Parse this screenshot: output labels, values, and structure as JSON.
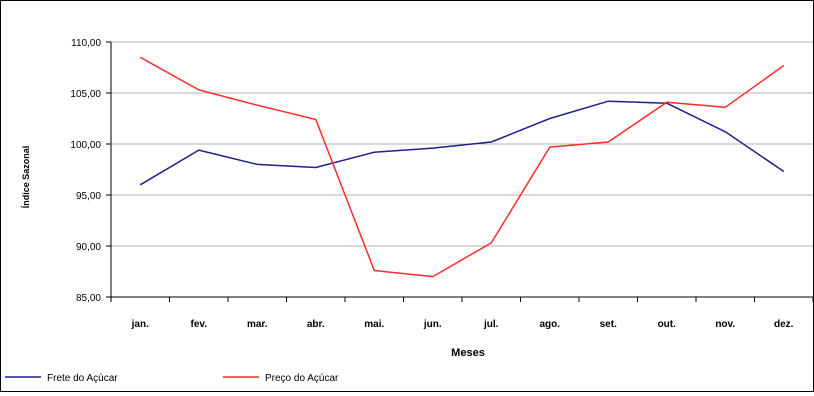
{
  "chart_data": {
    "type": "line",
    "title": "",
    "xlabel": "Meses",
    "ylabel": "Índice Sazonal",
    "ylim": [
      85,
      110
    ],
    "yticks": [
      85,
      90,
      95,
      100,
      105,
      110
    ],
    "ytick_labels": [
      "85,00",
      "90,00",
      "95,00",
      "100,00",
      "105,00",
      "110,00"
    ],
    "categories": [
      "jan.",
      "fev.",
      "mar.",
      "abr.",
      "mai.",
      "jun.",
      "jul.",
      "ago.",
      "set.",
      "out.",
      "nov.",
      "dez."
    ],
    "grid": true,
    "legend_position": "bottom-left",
    "series": [
      {
        "name": "Frete do Açúcar",
        "color": "#1f1f8f",
        "values": [
          96.0,
          99.4,
          98.0,
          97.7,
          99.2,
          99.6,
          100.2,
          102.5,
          104.2,
          104.0,
          101.2,
          97.3
        ]
      },
      {
        "name": "Preço do Açúcar",
        "color": "#ff2a2a",
        "values": [
          108.5,
          105.3,
          103.8,
          102.4,
          87.6,
          87.0,
          90.3,
          99.7,
          100.2,
          104.1,
          103.6,
          107.7
        ]
      }
    ]
  }
}
